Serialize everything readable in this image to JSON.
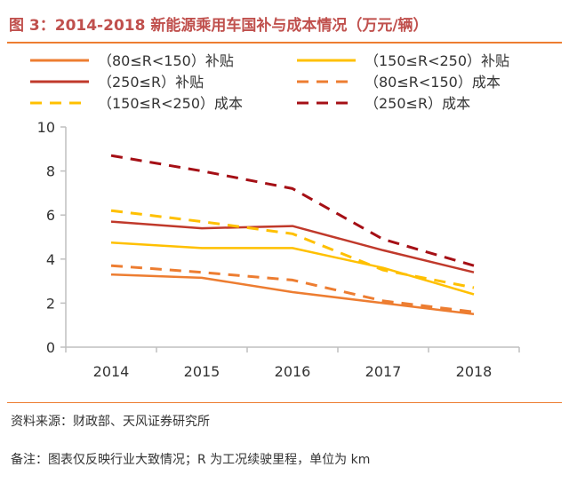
{
  "title": "图 3：2014-2018 新能源乘用车国补与成本情况（万元/辆）",
  "source": "资料来源：财政部、天风证券研究所",
  "remark": "备注：图表仅反映行业大致情况；R 为工况续驶里程，单位为 km",
  "chart_data": {
    "type": "line",
    "x": [
      "2014",
      "2015",
      "2016",
      "2017",
      "2018"
    ],
    "ylim": [
      0,
      10
    ],
    "yticks": [
      0,
      2,
      4,
      6,
      8,
      10
    ],
    "grid": false,
    "legend_position": "top",
    "series": [
      {
        "name": "（80≤R<150）补贴",
        "values": [
          3.3,
          3.15,
          2.5,
          2.0,
          1.5
        ],
        "color": "#ed7d31",
        "dash": false
      },
      {
        "name": "（150≤R<250）补贴",
        "values": [
          4.75,
          4.5,
          4.5,
          3.6,
          2.4
        ],
        "color": "#ffc000",
        "dash": false
      },
      {
        "name": "（250≤R）补贴",
        "values": [
          5.7,
          5.4,
          5.5,
          4.4,
          3.4
        ],
        "color": "#c0392b",
        "dash": false
      },
      {
        "name": "（80≤R<150）成本",
        "values": [
          3.7,
          3.4,
          3.05,
          2.1,
          1.6
        ],
        "color": "#ed7d31",
        "dash": true
      },
      {
        "name": "（150≤R<250）成本",
        "values": [
          6.2,
          5.7,
          5.15,
          3.5,
          2.7
        ],
        "color": "#ffc000",
        "dash": true
      },
      {
        "name": "（250≤R）成本",
        "values": [
          8.7,
          8.0,
          7.2,
          4.9,
          3.7
        ],
        "color": "#a50f15",
        "dash": true
      }
    ]
  }
}
